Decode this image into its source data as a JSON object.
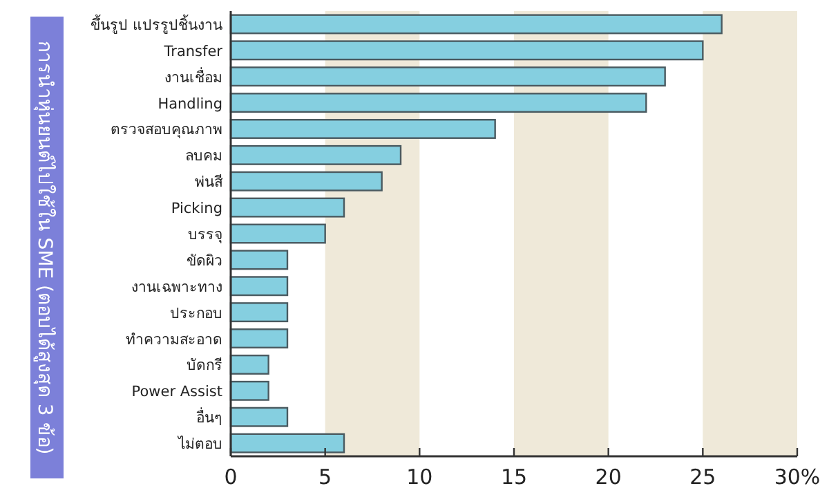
{
  "chart_data": {
    "type": "bar",
    "orientation": "horizontal",
    "title": "การนำหุ่นยนต์ไปใช้ใน SME (ตอบได้สูงสุด 3 ข้อ)",
    "categories": [
      "ขึ้นรูป แปรรูปชิ้นงาน",
      "Transfer",
      "งานเชื่อม",
      "Handling",
      "ตรวจสอบคุณภาพ",
      "ลบคม",
      "พ่นสี",
      "Picking",
      "บรรจุ",
      "ขัดผิว",
      "งานเฉพาะทาง",
      "ประกอบ",
      "ทำความสะอาด",
      "บัดกรี",
      "Power Assist",
      "อื่นๆ",
      "ไม่ตอบ"
    ],
    "values": [
      26,
      25,
      23,
      22,
      14,
      9,
      8,
      6,
      5,
      3,
      3,
      3,
      3,
      2,
      2,
      3,
      6
    ],
    "color": "#85cfe0",
    "xlim": [
      0,
      30
    ],
    "xticks": [
      0,
      5,
      10,
      15,
      20,
      25,
      {
        "value": 30,
        "label": "30%"
      }
    ],
    "bands": [
      {
        "axis": "x",
        "from": 5,
        "to": 10,
        "color": "#efe9d9"
      },
      {
        "axis": "x",
        "from": 15,
        "to": 20,
        "color": "#efe9d9"
      },
      {
        "axis": "x",
        "from": 25,
        "to": 30,
        "color": "#efe9d9"
      }
    ],
    "grid": false
  }
}
